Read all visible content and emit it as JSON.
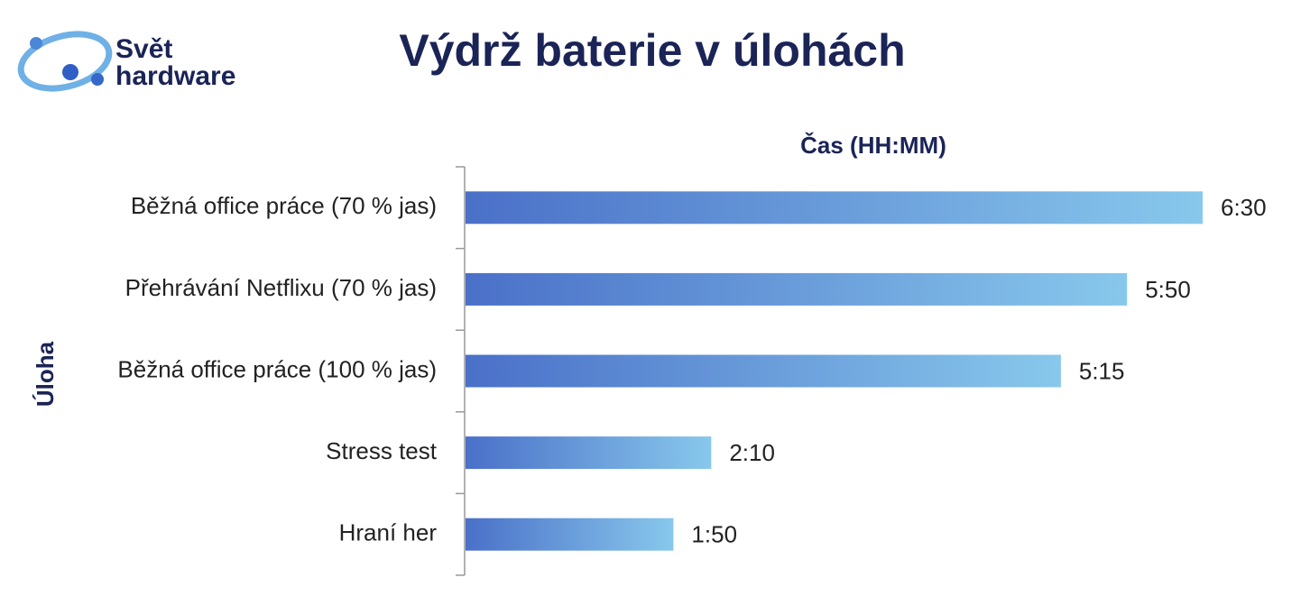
{
  "logo": {
    "line1": "Svět",
    "line2": "hardware"
  },
  "chart_data": {
    "type": "bar",
    "orientation": "horizontal",
    "title": "Výdrž baterie v úlohách",
    "x_label": "Čas (HH:MM)",
    "y_label": "Úloha",
    "categories": [
      "Běžná office práce (70 % jas)",
      "Přehrávání Netflixu (70 % jas)",
      "Běžná office práce (100 % jas)",
      "Stress test",
      "Hraní her"
    ],
    "values": [
      390,
      350,
      315,
      130,
      110
    ],
    "value_labels": [
      "6:30",
      "5:50",
      "5:15",
      "2:10",
      "1:50"
    ],
    "xlim": [
      0,
      390
    ],
    "color_start": "#4a70c8",
    "color_end": "#88c8ec"
  }
}
